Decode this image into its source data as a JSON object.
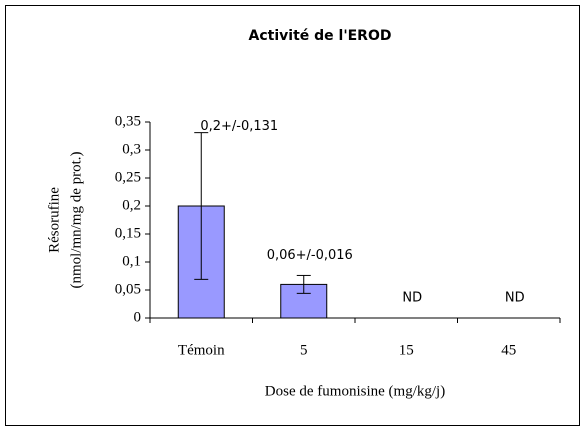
{
  "chart_data": {
    "type": "bar",
    "title": "Activité de l'EROD",
    "xlabel": "Dose de fumonisine (mg/kg/j)",
    "ylabel": [
      "Résorufine",
      "(nmol/mn/mg de prot.)"
    ],
    "categories": [
      "Témoin",
      "5",
      "15",
      "45"
    ],
    "values": [
      0.2,
      0.06,
      null,
      null
    ],
    "errors": [
      0.131,
      0.016,
      null,
      null
    ],
    "value_labels": [
      "0,2+/-0,131",
      "0,06+/-0,016",
      "ND",
      "ND"
    ],
    "color": "#9999ff",
    "ylim": [
      0,
      0.35
    ],
    "yticks": [
      {
        "value": 0,
        "label": "0"
      },
      {
        "value": 0.05,
        "label": "0,05"
      },
      {
        "value": 0.1,
        "label": "0,1"
      },
      {
        "value": 0.15,
        "label": "0,15"
      },
      {
        "value": 0.2,
        "label": "0,2"
      },
      {
        "value": 0.25,
        "label": "0,25"
      },
      {
        "value": 0.3,
        "label": "0,3"
      },
      {
        "value": 0.35,
        "label": "0,35"
      }
    ],
    "grid": false
  }
}
